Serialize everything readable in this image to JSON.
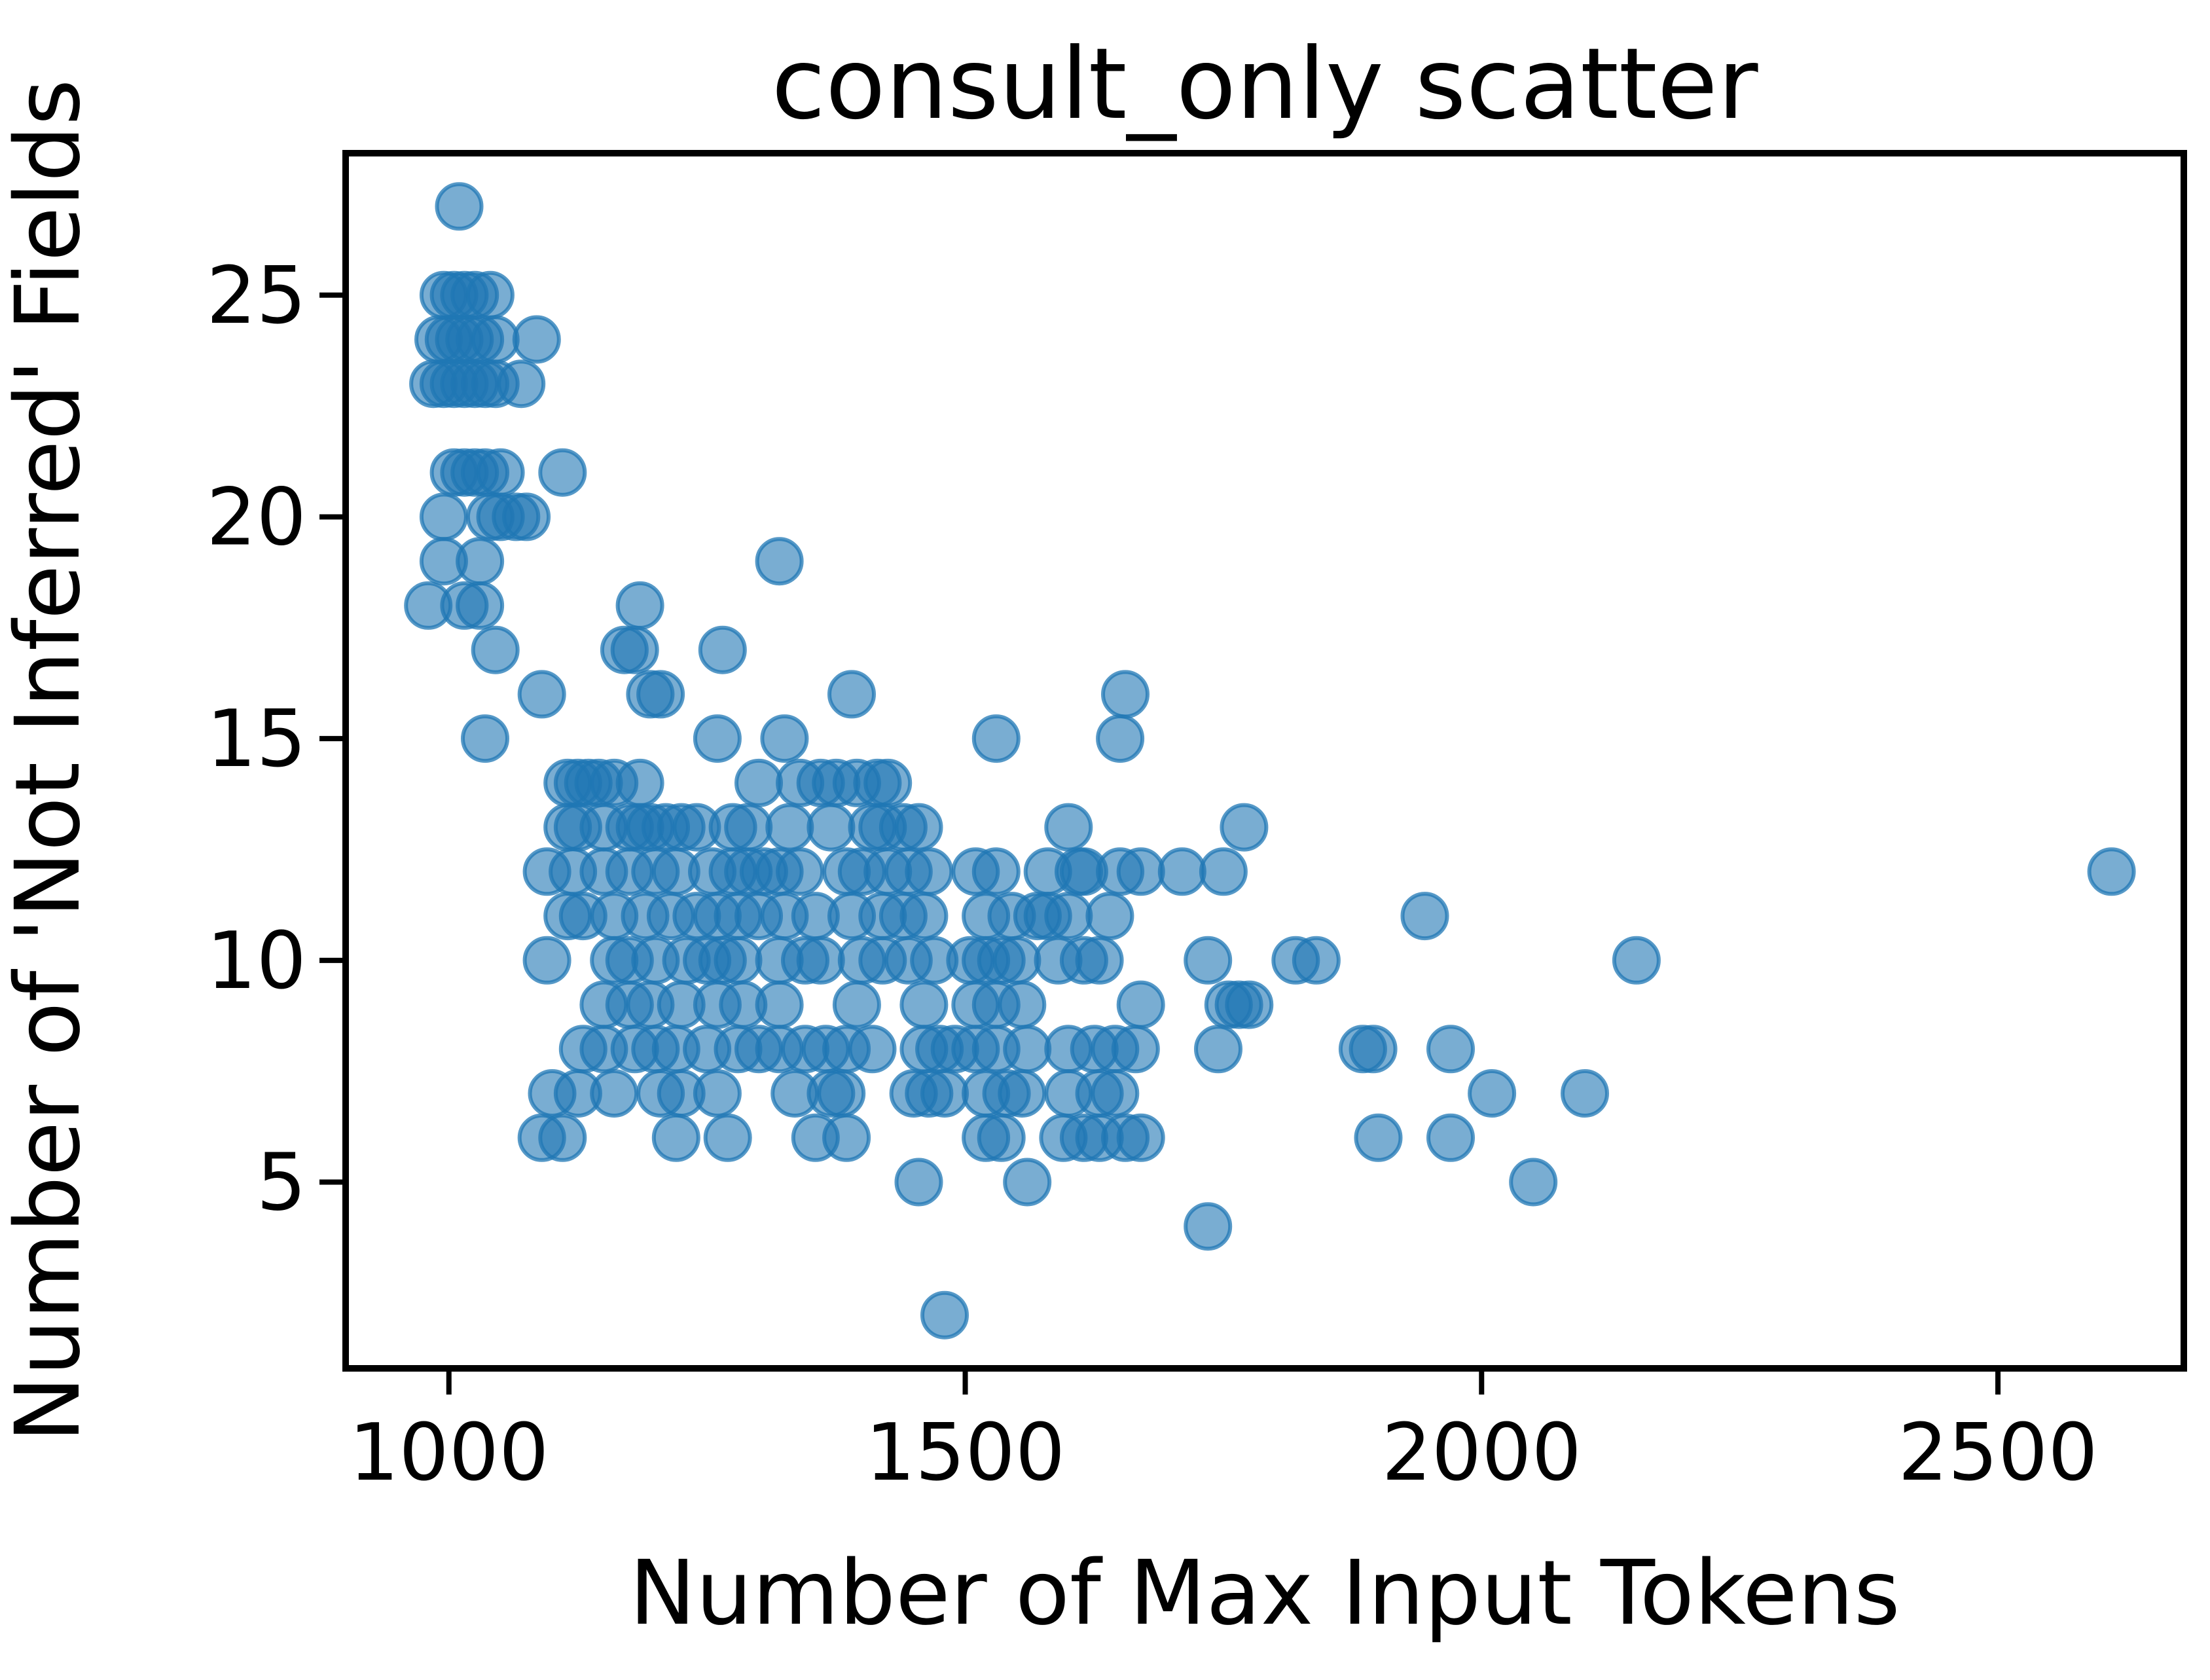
{
  "chart_data": {
    "type": "scatter",
    "title": "consult_only scatter",
    "xlabel": "Number of Max Input Tokens",
    "ylabel": "Number of 'Not Inferred' Fields",
    "xlim": [
      900,
      2680
    ],
    "ylim": [
      0.8,
      28.2
    ],
    "xticks": [
      1000,
      1500,
      2000,
      2500
    ],
    "yticks": [
      5,
      10,
      15,
      20,
      25
    ],
    "xtick_labels": [
      "1000",
      "1500",
      "2000",
      "2500"
    ],
    "ytick_labels": [
      "5",
      "10",
      "15",
      "20",
      "25"
    ],
    "grid": false,
    "legend": "none",
    "marker_color": "#1f77b4",
    "marker_alpha": 0.6,
    "points": [
      [
        1010,
        27
      ],
      [
        995,
        25
      ],
      [
        1005,
        25
      ],
      [
        1015,
        25
      ],
      [
        1025,
        25
      ],
      [
        1040,
        25
      ],
      [
        990,
        24
      ],
      [
        1000,
        24
      ],
      [
        1010,
        24
      ],
      [
        1020,
        24
      ],
      [
        1030,
        24
      ],
      [
        1045,
        24
      ],
      [
        1085,
        24
      ],
      [
        985,
        23
      ],
      [
        995,
        23
      ],
      [
        1005,
        23
      ],
      [
        1015,
        23
      ],
      [
        1025,
        23
      ],
      [
        1035,
        23
      ],
      [
        1045,
        23
      ],
      [
        1070,
        23
      ],
      [
        1005,
        21
      ],
      [
        1015,
        21
      ],
      [
        1025,
        21
      ],
      [
        1035,
        21
      ],
      [
        1050,
        21
      ],
      [
        1110,
        21
      ],
      [
        995,
        20
      ],
      [
        1040,
        20
      ],
      [
        1050,
        20
      ],
      [
        1065,
        20
      ],
      [
        1075,
        20
      ],
      [
        995,
        19
      ],
      [
        1030,
        19
      ],
      [
        1320,
        19
      ],
      [
        980,
        18
      ],
      [
        1015,
        18
      ],
      [
        1030,
        18
      ],
      [
        1185,
        18
      ],
      [
        1045,
        17
      ],
      [
        1170,
        17
      ],
      [
        1180,
        17
      ],
      [
        1265,
        17
      ],
      [
        1090,
        16
      ],
      [
        1195,
        16
      ],
      [
        1205,
        16
      ],
      [
        1390,
        16
      ],
      [
        1655,
        16
      ],
      [
        1035,
        15
      ],
      [
        1260,
        15
      ],
      [
        1325,
        15
      ],
      [
        1530,
        15
      ],
      [
        1650,
        15
      ],
      [
        1115,
        14
      ],
      [
        1125,
        14
      ],
      [
        1135,
        14
      ],
      [
        1145,
        14
      ],
      [
        1160,
        14
      ],
      [
        1185,
        14
      ],
      [
        1300,
        14
      ],
      [
        1340,
        14
      ],
      [
        1360,
        14
      ],
      [
        1375,
        14
      ],
      [
        1395,
        14
      ],
      [
        1415,
        14
      ],
      [
        1425,
        14
      ],
      [
        1115,
        13
      ],
      [
        1125,
        13
      ],
      [
        1150,
        13
      ],
      [
        1175,
        13
      ],
      [
        1185,
        13
      ],
      [
        1195,
        13
      ],
      [
        1210,
        13
      ],
      [
        1225,
        13
      ],
      [
        1240,
        13
      ],
      [
        1275,
        13
      ],
      [
        1290,
        13
      ],
      [
        1330,
        13
      ],
      [
        1370,
        13
      ],
      [
        1410,
        13
      ],
      [
        1420,
        13
      ],
      [
        1440,
        13
      ],
      [
        1455,
        13
      ],
      [
        1600,
        13
      ],
      [
        1770,
        13
      ],
      [
        1095,
        12
      ],
      [
        1120,
        12
      ],
      [
        1150,
        12
      ],
      [
        1175,
        12
      ],
      [
        1200,
        12
      ],
      [
        1220,
        12
      ],
      [
        1255,
        12
      ],
      [
        1275,
        12
      ],
      [
        1290,
        12
      ],
      [
        1305,
        12
      ],
      [
        1320,
        12
      ],
      [
        1340,
        12
      ],
      [
        1385,
        12
      ],
      [
        1400,
        12
      ],
      [
        1425,
        12
      ],
      [
        1445,
        12
      ],
      [
        1465,
        12
      ],
      [
        1510,
        12
      ],
      [
        1530,
        12
      ],
      [
        1580,
        12
      ],
      [
        1610,
        12
      ],
      [
        1615,
        12
      ],
      [
        1650,
        12
      ],
      [
        1670,
        12
      ],
      [
        1710,
        12
      ],
      [
        1750,
        12
      ],
      [
        2610,
        12
      ],
      [
        1115,
        11
      ],
      [
        1130,
        11
      ],
      [
        1160,
        11
      ],
      [
        1190,
        11
      ],
      [
        1215,
        11
      ],
      [
        1240,
        11
      ],
      [
        1260,
        11
      ],
      [
        1280,
        11
      ],
      [
        1300,
        11
      ],
      [
        1325,
        11
      ],
      [
        1355,
        11
      ],
      [
        1390,
        11
      ],
      [
        1420,
        11
      ],
      [
        1440,
        11
      ],
      [
        1460,
        11
      ],
      [
        1520,
        11
      ],
      [
        1545,
        11
      ],
      [
        1570,
        11
      ],
      [
        1580,
        11
      ],
      [
        1600,
        11
      ],
      [
        1640,
        11
      ],
      [
        1945,
        11
      ],
      [
        1095,
        10
      ],
      [
        1160,
        10
      ],
      [
        1175,
        10
      ],
      [
        1200,
        10
      ],
      [
        1230,
        10
      ],
      [
        1250,
        10
      ],
      [
        1265,
        10
      ],
      [
        1280,
        10
      ],
      [
        1320,
        10
      ],
      [
        1345,
        10
      ],
      [
        1360,
        10
      ],
      [
        1400,
        10
      ],
      [
        1420,
        10
      ],
      [
        1445,
        10
      ],
      [
        1470,
        10
      ],
      [
        1505,
        10
      ],
      [
        1520,
        10
      ],
      [
        1535,
        10
      ],
      [
        1550,
        10
      ],
      [
        1590,
        10
      ],
      [
        1615,
        10
      ],
      [
        1630,
        10
      ],
      [
        1735,
        10
      ],
      [
        1820,
        10
      ],
      [
        1840,
        10
      ],
      [
        2150,
        10
      ],
      [
        1150,
        9
      ],
      [
        1175,
        9
      ],
      [
        1195,
        9
      ],
      [
        1225,
        9
      ],
      [
        1260,
        9
      ],
      [
        1285,
        9
      ],
      [
        1320,
        9
      ],
      [
        1395,
        9
      ],
      [
        1460,
        9
      ],
      [
        1510,
        9
      ],
      [
        1530,
        9
      ],
      [
        1555,
        9
      ],
      [
        1670,
        9
      ],
      [
        1755,
        9
      ],
      [
        1765,
        9
      ],
      [
        1775,
        9
      ],
      [
        1130,
        8
      ],
      [
        1150,
        8
      ],
      [
        1180,
        8
      ],
      [
        1200,
        8
      ],
      [
        1220,
        8
      ],
      [
        1250,
        8
      ],
      [
        1280,
        8
      ],
      [
        1300,
        8
      ],
      [
        1320,
        8
      ],
      [
        1345,
        8
      ],
      [
        1365,
        8
      ],
      [
        1385,
        8
      ],
      [
        1410,
        8
      ],
      [
        1460,
        8
      ],
      [
        1475,
        8
      ],
      [
        1490,
        8
      ],
      [
        1510,
        8
      ],
      [
        1530,
        8
      ],
      [
        1560,
        8
      ],
      [
        1600,
        8
      ],
      [
        1625,
        8
      ],
      [
        1645,
        8
      ],
      [
        1665,
        8
      ],
      [
        1745,
        8
      ],
      [
        1885,
        8
      ],
      [
        1895,
        8
      ],
      [
        1970,
        8
      ],
      [
        1100,
        7
      ],
      [
        1125,
        7
      ],
      [
        1160,
        7
      ],
      [
        1205,
        7
      ],
      [
        1225,
        7
      ],
      [
        1260,
        7
      ],
      [
        1335,
        7
      ],
      [
        1370,
        7
      ],
      [
        1380,
        7
      ],
      [
        1450,
        7
      ],
      [
        1465,
        7
      ],
      [
        1480,
        7
      ],
      [
        1520,
        7
      ],
      [
        1540,
        7
      ],
      [
        1555,
        7
      ],
      [
        1600,
        7
      ],
      [
        1630,
        7
      ],
      [
        1645,
        7
      ],
      [
        2010,
        7
      ],
      [
        2100,
        7
      ],
      [
        1090,
        6
      ],
      [
        1110,
        6
      ],
      [
        1220,
        6
      ],
      [
        1270,
        6
      ],
      [
        1355,
        6
      ],
      [
        1385,
        6
      ],
      [
        1520,
        6
      ],
      [
        1535,
        6
      ],
      [
        1595,
        6
      ],
      [
        1615,
        6
      ],
      [
        1630,
        6
      ],
      [
        1655,
        6
      ],
      [
        1670,
        6
      ],
      [
        1900,
        6
      ],
      [
        1970,
        6
      ],
      [
        1455,
        5
      ],
      [
        1560,
        5
      ],
      [
        2050,
        5
      ],
      [
        1735,
        4
      ],
      [
        1480,
        2
      ]
    ]
  }
}
